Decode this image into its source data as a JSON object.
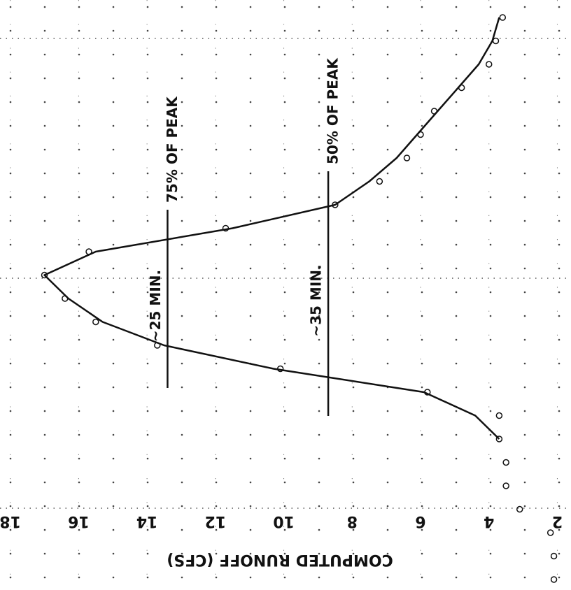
{
  "chart_data": {
    "type": "scatter",
    "orientation": "horizontal-values",
    "y_label": "COMPUTED RUNOFF (CFS)",
    "categories": [
      null,
      null,
      null,
      null,
      null,
      null,
      null,
      null,
      null,
      null,
      null,
      null,
      null,
      null,
      null,
      null,
      null,
      null,
      null,
      null,
      null,
      null,
      null,
      null,
      null
    ],
    "series": [
      {
        "marker": "circle",
        "color": "#111111",
        "values": [
          3.6,
          3.8,
          4.0,
          4.8,
          5.6,
          6.0,
          6.4,
          7.2,
          8.5,
          11.7,
          15.7,
          17.0,
          16.4,
          15.5,
          13.7,
          10.1,
          5.8,
          3.7,
          3.7,
          3.5,
          3.5,
          3.1,
          2.2,
          2.1,
          2.1
        ]
      },
      {
        "marker": "none",
        "color": "#111111",
        "values": [
          3.7,
          3.9,
          4.3,
          4.9,
          5.5,
          6.1,
          6.7,
          7.5,
          8.5,
          11.5,
          15.5,
          17.0,
          16.3,
          15.3,
          13.5,
          10.3,
          5.9,
          4.4,
          3.7,
          null,
          null,
          null,
          null,
          null,
          null
        ]
      }
    ],
    "reference_lines": [
      {
        "value": 13.4,
        "label": "75% OF PEAK",
        "duration": "~25 MIN."
      },
      {
        "value": 8.7,
        "label": "50% OF PEAK",
        "duration": "~35 MIN."
      }
    ],
    "ylim": [
      1.6,
      18.3
    ],
    "yticks": [
      18,
      16,
      14,
      12,
      10,
      8,
      6,
      4,
      2
    ],
    "grid": "dotted"
  }
}
